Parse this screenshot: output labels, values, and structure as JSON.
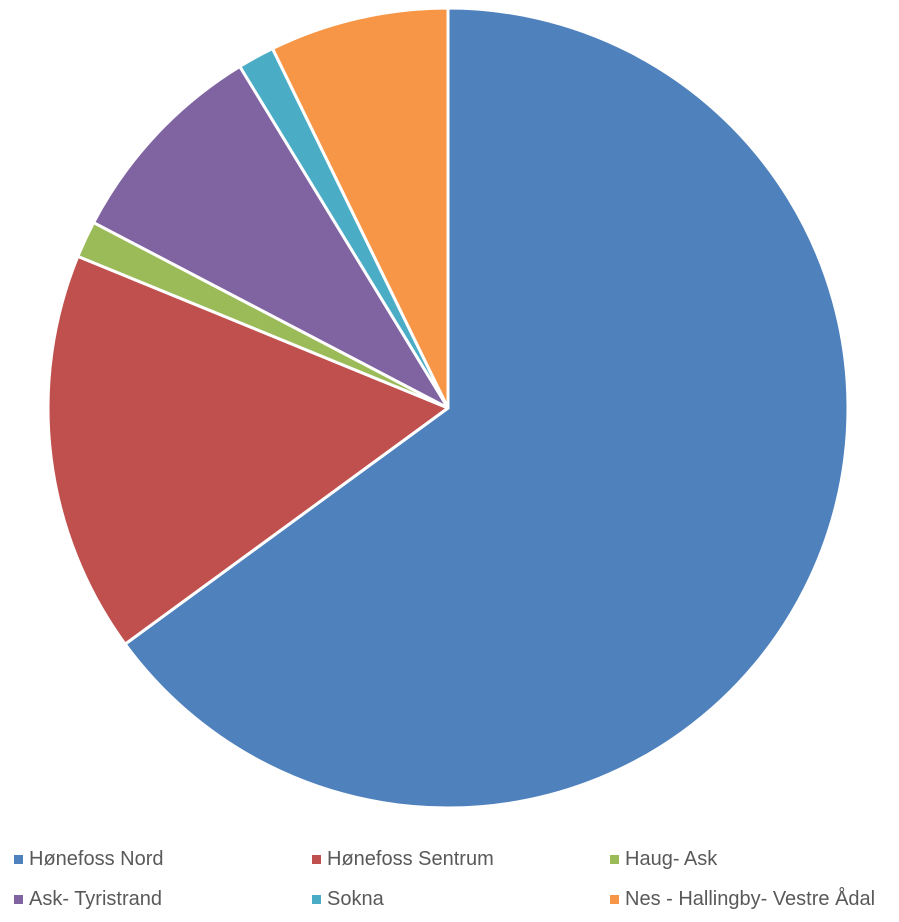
{
  "chart_data": {
    "type": "pie",
    "title": "",
    "start_angle_deg": 0,
    "direction": "clockwise",
    "legend_position": "bottom",
    "categories": [
      "Hønefoss Nord",
      "Hønefoss Sentrum",
      "Haug- Ask",
      "Ask- Tyristrand",
      "Sokna",
      "Nes - Hallingby- Vestre Ådal"
    ],
    "values": [
      65.6,
      16.4,
      1.5,
      8.7,
      1.5,
      7.3
    ],
    "colors": [
      "#4F81BD",
      "#C0504D",
      "#9BBB59",
      "#8064A2",
      "#4BACC6",
      "#F79646"
    ]
  }
}
